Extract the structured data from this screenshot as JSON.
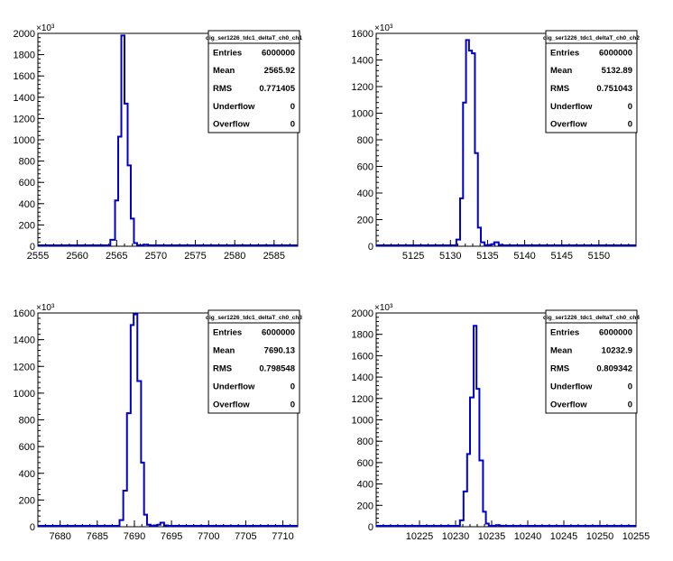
{
  "chart_data": [
    {
      "type": "bar",
      "title": "dig_ser1226_tdc1_deltaT_ch0_ch1",
      "exponent_label": "×10³",
      "xlim": [
        2555,
        2588
      ],
      "ylim": [
        0,
        2000
      ],
      "xticks": [
        2555,
        2560,
        2565,
        2570,
        2575,
        2580,
        2585
      ],
      "yticks": [
        0,
        200,
        400,
        600,
        800,
        1000,
        1200,
        1400,
        1600,
        1800,
        2000
      ],
      "bin_edges": [
        2564.2,
        2564.8,
        2565.2,
        2565.6,
        2566.0,
        2566.4,
        2566.8,
        2567.2,
        2567.6,
        2568.0,
        2568.4,
        2569.0,
        2569.4
      ],
      "values": [
        60,
        430,
        1030,
        1980,
        1340,
        760,
        260,
        30,
        5,
        5,
        15,
        5
      ],
      "stats": {
        "Entries": "6000000",
        "Mean": "2565.92",
        "RMS": "0.771405",
        "Underflow": "0",
        "Overflow": "0"
      }
    },
    {
      "type": "bar",
      "title": "dig_ser1226_tdc1_deltaT_ch0_ch2",
      "exponent_label": "×10³",
      "xlim": [
        5120,
        5155
      ],
      "ylim": [
        0,
        1600
      ],
      "xticks": [
        5125,
        5130,
        5135,
        5140,
        5145,
        5150
      ],
      "yticks": [
        0,
        200,
        400,
        600,
        800,
        1000,
        1200,
        1400,
        1600
      ],
      "bin_edges": [
        5130.8,
        5131.3,
        5131.7,
        5132.1,
        5132.5,
        5132.9,
        5133.3,
        5133.7,
        5134.1,
        5134.6,
        5135.0,
        5135.5,
        5135.9,
        5136.5,
        5137.0
      ],
      "values": [
        50,
        360,
        1080,
        1550,
        1470,
        1450,
        700,
        140,
        30,
        5,
        10,
        15,
        30,
        10
      ],
      "stats": {
        "Entries": "6000000",
        "Mean": "5132.89",
        "RMS": "0.751043",
        "Underflow": "0",
        "Overflow": "0"
      }
    },
    {
      "type": "bar",
      "title": "dig_ser1226_tdc1_deltaT_ch0_ch3",
      "exponent_label": "×10³",
      "xlim": [
        7677,
        7712
      ],
      "ylim": [
        0,
        1600
      ],
      "xticks": [
        7680,
        7685,
        7690,
        7695,
        7700,
        7705,
        7710
      ],
      "yticks": [
        0,
        200,
        400,
        600,
        800,
        1000,
        1200,
        1400,
        1600
      ],
      "bin_edges": [
        7688.0,
        7688.5,
        7689.0,
        7689.5,
        7689.9,
        7690.4,
        7690.9,
        7691.3,
        7691.7,
        7692.2,
        7692.6,
        7693.1,
        7693.5,
        7694.0,
        7694.5
      ],
      "values": [
        50,
        270,
        850,
        1510,
        1590,
        1090,
        480,
        90,
        15,
        5,
        10,
        15,
        30,
        10
      ],
      "stats": {
        "Entries": "6000000",
        "Mean": "7690.13",
        "RMS": "0.798548",
        "Underflow": "0",
        "Overflow": "0"
      }
    },
    {
      "type": "bar",
      "title": "dig_ser1226_tdc1_deltaT_ch0_ch4",
      "exponent_label": "×10³",
      "xlim": [
        10219,
        10255
      ],
      "ylim": [
        0,
        2000
      ],
      "xticks": [
        10225,
        10230,
        10235,
        10240,
        10245,
        10250,
        10255
      ],
      "yticks": [
        0,
        200,
        400,
        600,
        800,
        1000,
        1200,
        1400,
        1600,
        1800,
        2000
      ],
      "bin_edges": [
        10230.6,
        10231.1,
        10231.6,
        10232.0,
        10232.5,
        10232.9,
        10233.3,
        10233.8,
        10234.2,
        10234.6,
        10235.0,
        10235.6,
        10236.1,
        10236.6
      ],
      "values": [
        60,
        330,
        680,
        1210,
        1880,
        1290,
        620,
        140,
        30,
        5,
        10,
        15,
        10
      ],
      "stats": {
        "Entries": "6000000",
        "Mean": "10232.9",
        "RMS": "0.809342",
        "Underflow": "0",
        "Overflow": "0"
      }
    }
  ],
  "colors": {
    "histogram": "#0000cc",
    "axis": "#000000",
    "background": "#ffffff"
  }
}
